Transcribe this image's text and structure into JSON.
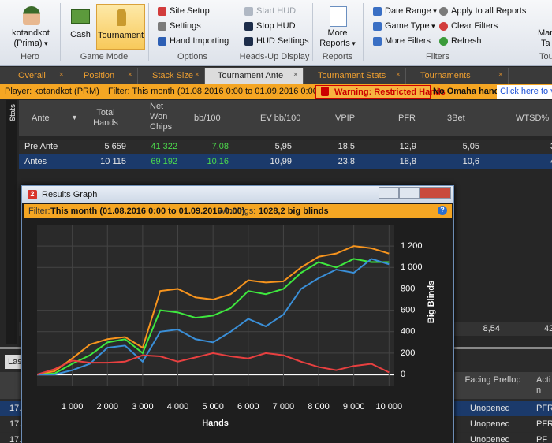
{
  "ribbon": {
    "hero": {
      "name": "kotandkot",
      "site": "(Prima)",
      "group": "Hero"
    },
    "game_mode": {
      "items": [
        "Cash",
        "Tournament"
      ],
      "group": "Game Mode"
    },
    "options": {
      "items": [
        "Site Setup",
        "Settings",
        "Hand Importing"
      ],
      "group": "Options"
    },
    "hud": {
      "items": [
        "Start HUD",
        "Stop HUD",
        "HUD Settings"
      ],
      "group": "Heads-Up Display"
    },
    "reports": {
      "items": [
        "More Reports"
      ],
      "group": "Reports"
    },
    "filters": {
      "items": [
        "Date Range",
        "Game Type",
        "More Filters",
        "Apply to all Reports",
        "Clear Filters",
        "Refresh"
      ],
      "group": "Filters"
    },
    "partial": {
      "items": [
        "Mar",
        "Ta"
      ],
      "group": "Tou"
    }
  },
  "tabs": [
    "Overall",
    "Position",
    "Stack Size",
    "Tournament Ante",
    "Tournament Stats",
    "Tournaments"
  ],
  "filter_bar": {
    "player": "Player: kotandkot (PRM)",
    "filter": "Filter: This month (01.08.2016 0:00 to 01.09.2016 0:00)",
    "warning": "Warning: Restricted Hands",
    "omaha": "No Omaha hands.",
    "link": "Click here to v"
  },
  "table": {
    "side_label": "Stats",
    "columns": [
      "Ante",
      "Total Hands",
      "Net Won Chips",
      "bb/100",
      "EV bb/100",
      "VPIP",
      "PFR",
      "3Bet",
      "WTSD%"
    ],
    "rows": [
      [
        "Pre Ante",
        "5 659",
        "41 322",
        "7,08",
        "5,95",
        "18,5",
        "12,9",
        "5,05",
        "3"
      ],
      [
        "Antes",
        "10 115",
        "69 192",
        "10,16",
        "10,99",
        "23,8",
        "18,8",
        "10,6",
        "4"
      ]
    ],
    "total_partial": [
      "8,54",
      "42"
    ]
  },
  "lower": {
    "tab": "Las",
    "columns": [
      "Facing Preflop",
      "Acti n"
    ],
    "rows": [
      [
        "17.",
        "Unopened",
        "PFR"
      ],
      [
        "17.",
        "Unopened",
        "PFR"
      ],
      [
        "17.",
        "Unopened",
        "PF"
      ]
    ]
  },
  "graph_window": {
    "title": "Results Graph",
    "filter_label": "Filter:",
    "filter": "This month (01.08.2016 0:00 to 01.09.2016 0:00)",
    "winnings_label": "Winnings:",
    "winnings": "1028,2 big blinds",
    "chart_data": {
      "type": "line",
      "xlabel": "Hands",
      "ylabel": "Big Blinds",
      "grid": true,
      "x": [
        0,
        500,
        1000,
        1500,
        2000,
        2500,
        3000,
        3500,
        4000,
        4500,
        5000,
        5500,
        6000,
        6500,
        7000,
        7500,
        8000,
        8500,
        9000,
        9500,
        10000
      ],
      "series": [
        {
          "color": "#f7941d",
          "values": [
            0,
            30,
            150,
            280,
            330,
            350,
            250,
            780,
            800,
            720,
            700,
            750,
            880,
            860,
            870,
            1000,
            1100,
            1130,
            1200,
            1180,
            1130
          ]
        },
        {
          "color": "#3ee83e",
          "values": [
            0,
            10,
            100,
            180,
            300,
            330,
            200,
            600,
            580,
            530,
            550,
            620,
            780,
            750,
            800,
            950,
            1050,
            1000,
            1080,
            1050,
            1050
          ]
        },
        {
          "color": "#3a8fd8",
          "values": [
            0,
            0,
            40,
            100,
            250,
            270,
            120,
            400,
            420,
            330,
            300,
            400,
            520,
            450,
            560,
            800,
            900,
            980,
            950,
            1080,
            1030
          ]
        },
        {
          "color": "#e84040",
          "values": [
            0,
            50,
            130,
            110,
            110,
            120,
            180,
            170,
            120,
            160,
            200,
            170,
            150,
            200,
            180,
            120,
            70,
            40,
            80,
            100,
            20
          ]
        }
      ],
      "xlim": [
        0,
        10150
      ],
      "ylim": [
        -110,
        1400
      ],
      "xticks": [
        {
          "value": 1000,
          "label": "1 000"
        },
        {
          "value": 2000,
          "label": "2 000"
        },
        {
          "value": 3000,
          "label": "3 000"
        },
        {
          "value": 4000,
          "label": "4 000"
        },
        {
          "value": 5000,
          "label": "5 000"
        },
        {
          "value": 6000,
          "label": "6 000"
        },
        {
          "value": 7000,
          "label": "7 000"
        },
        {
          "value": 8000,
          "label": "8 000"
        },
        {
          "value": 9000,
          "label": "9 000"
        },
        {
          "value": 10000,
          "label": "10 000"
        }
      ],
      "yticks": [
        {
          "value": 1200,
          "label": "1 200"
        },
        {
          "value": 1000,
          "label": "1 000"
        },
        800,
        600,
        400,
        200,
        0
      ]
    }
  }
}
